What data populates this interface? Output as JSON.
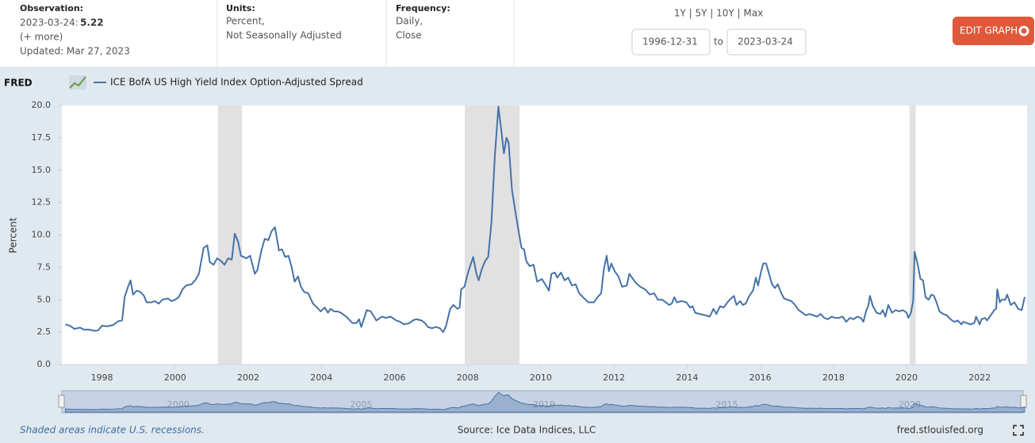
{
  "header": {
    "observation_label": "Observation:",
    "observation_date": "2023-03-24:",
    "observation_value": "5.22",
    "more": "(+ more)",
    "updated": "Updated: Mar 27, 2023",
    "units_label": "Units:",
    "units_1": "Percent,",
    "units_2": "Not Seasonally Adjusted",
    "frequency_label": "Frequency:",
    "frequency_1": "Daily,",
    "frequency_2": "Close",
    "range_options": "1Y | 5Y | 10Y | Max",
    "start_date": "1996-12-31",
    "to": "to",
    "end_date": "2023-03-24",
    "edit_button": "EDIT GRAPH",
    "logo": "FRED"
  },
  "chart_data": {
    "type": "line",
    "ylabel": "Percent",
    "note": "Shaded areas indicate U.S. recessions.",
    "source": "Source: Ice Data Indices, LLC",
    "site": "fred.stlouisfed.org",
    "xlim": [
      1996.99,
      2023.23
    ],
    "ylim": [
      0,
      20
    ],
    "xticks": [
      1998,
      2000,
      2002,
      2004,
      2006,
      2008,
      2010,
      2012,
      2014,
      2016,
      2018,
      2020,
      2022
    ],
    "navigator_ticks": [
      2000,
      2005,
      2010,
      2015,
      2020
    ],
    "yticks": [
      {
        "value": 0,
        "label": "0.0"
      },
      2.5,
      {
        "value": 5,
        "label": "5.0"
      },
      7.5,
      {
        "value": 10,
        "label": "10.0"
      },
      12.5,
      {
        "value": 15,
        "label": "15.0"
      },
      17.5,
      {
        "value": 20,
        "label": "20.0"
      }
    ],
    "grid": false,
    "recessions": [
      [
        2001.17,
        2001.83
      ],
      [
        2007.92,
        2009.42
      ],
      [
        2020.08,
        2020.25
      ]
    ],
    "recession_color": "#e1e1e1",
    "x": [
      1997.0,
      1997.12,
      1997.25,
      1997.4,
      1997.5,
      1997.65,
      1997.8,
      1997.9,
      1998.0,
      1998.15,
      1998.3,
      1998.45,
      1998.55,
      1998.62,
      1998.7,
      1998.78,
      1998.85,
      1998.95,
      1999.05,
      1999.15,
      1999.22,
      1999.35,
      1999.45,
      1999.55,
      1999.65,
      1999.8,
      1999.9,
      2000.0,
      2000.1,
      2000.2,
      2000.3,
      2000.45,
      2000.55,
      2000.65,
      2000.78,
      2000.88,
      2000.95,
      2001.05,
      2001.15,
      2001.25,
      2001.35,
      2001.45,
      2001.55,
      2001.63,
      2001.72,
      2001.8,
      2001.95,
      2002.05,
      2002.18,
      2002.25,
      2002.36,
      2002.45,
      2002.55,
      2002.64,
      2002.73,
      2002.84,
      2002.92,
      2003.01,
      2003.1,
      2003.18,
      2003.27,
      2003.36,
      2003.44,
      2003.53,
      2003.64,
      2003.77,
      2003.88,
      2003.98,
      2004.09,
      2004.18,
      2004.25,
      2004.35,
      2004.44,
      2004.53,
      2004.68,
      2004.85,
      2004.96,
      2005.03,
      2005.09,
      2005.16,
      2005.24,
      2005.35,
      2005.44,
      2005.5,
      2005.66,
      2005.76,
      2005.89,
      2006.05,
      2006.15,
      2006.26,
      2006.41,
      2006.5,
      2006.59,
      2006.74,
      2006.83,
      2006.91,
      2007.02,
      2007.13,
      2007.24,
      2007.33,
      2007.41,
      2007.52,
      2007.61,
      2007.72,
      2007.78,
      2007.82,
      2007.91,
      2008.02,
      2008.15,
      2008.24,
      2008.3,
      2008.39,
      2008.48,
      2008.56,
      2008.65,
      2008.74,
      2008.84,
      2008.93,
      2008.99,
      2009.06,
      2009.12,
      2009.21,
      2009.32,
      2009.41,
      2009.47,
      2009.54,
      2009.6,
      2009.69,
      2009.8,
      2009.9,
      2010.03,
      2010.16,
      2010.22,
      2010.29,
      2010.38,
      2010.45,
      2010.55,
      2010.65,
      2010.75,
      2010.85,
      2010.95,
      2011.05,
      2011.15,
      2011.3,
      2011.45,
      2011.55,
      2011.65,
      2011.72,
      2011.8,
      2011.86,
      2011.93,
      2012.02,
      2012.12,
      2012.22,
      2012.35,
      2012.42,
      2012.52,
      2012.6,
      2012.72,
      2012.85,
      2012.98,
      2013.1,
      2013.2,
      2013.32,
      2013.42,
      2013.5,
      2013.58,
      2013.65,
      2013.72,
      2013.85,
      2013.98,
      2014.08,
      2014.15,
      2014.22,
      2014.35,
      2014.5,
      2014.62,
      2014.72,
      2014.8,
      2014.9,
      2015.0,
      2015.1,
      2015.2,
      2015.28,
      2015.35,
      2015.45,
      2015.52,
      2015.6,
      2015.7,
      2015.8,
      2015.88,
      2015.94,
      2016.0,
      2016.08,
      2016.16,
      2016.24,
      2016.32,
      2016.4,
      2016.48,
      2016.56,
      2016.65,
      2016.75,
      2016.85,
      2016.95,
      2017.05,
      2017.15,
      2017.25,
      2017.35,
      2017.45,
      2017.55,
      2017.65,
      2017.75,
      2017.85,
      2017.95,
      2018.05,
      2018.15,
      2018.25,
      2018.35,
      2018.45,
      2018.55,
      2018.65,
      2018.75,
      2018.82,
      2018.9,
      2018.95,
      2019.0,
      2019.08,
      2019.18,
      2019.28,
      2019.35,
      2019.42,
      2019.5,
      2019.6,
      2019.7,
      2019.8,
      2019.9,
      2020.0,
      2020.05,
      2020.12,
      2020.18,
      2020.22,
      2020.3,
      2020.38,
      2020.45,
      2020.52,
      2020.6,
      2020.68,
      2020.75,
      2020.82,
      2020.9,
      2021.0,
      2021.1,
      2021.2,
      2021.3,
      2021.4,
      2021.5,
      2021.55,
      2021.65,
      2021.75,
      2021.85,
      2021.9,
      2022.0,
      2022.05,
      2022.15,
      2022.2,
      2022.3,
      2022.4,
      2022.45,
      2022.48,
      2022.55,
      2022.6,
      2022.7,
      2022.75,
      2022.85,
      2022.9,
      2022.95,
      2023.05,
      2023.15,
      2023.23
    ],
    "series": [
      {
        "name": "ICE BofA US High Yield Index Option-Adjusted Spread",
        "color": "#4572a7",
        "values": [
          3.1,
          3.0,
          2.75,
          2.85,
          2.7,
          2.7,
          2.6,
          2.65,
          3.0,
          2.95,
          3.05,
          3.35,
          3.4,
          5.2,
          5.9,
          6.5,
          5.4,
          5.7,
          5.6,
          5.3,
          4.8,
          4.8,
          4.9,
          4.7,
          5.0,
          5.1,
          4.9,
          5.0,
          5.2,
          5.8,
          6.1,
          6.2,
          6.5,
          7.0,
          9.0,
          9.2,
          7.9,
          7.7,
          8.2,
          8.0,
          7.7,
          8.2,
          8.1,
          10.1,
          9.5,
          8.4,
          8.2,
          8.4,
          7.0,
          7.3,
          8.8,
          9.7,
          9.6,
          10.3,
          10.6,
          8.8,
          8.9,
          8.3,
          8.4,
          7.6,
          6.4,
          6.8,
          6.0,
          5.6,
          5.5,
          4.7,
          4.4,
          4.1,
          4.4,
          4.0,
          4.3,
          4.1,
          4.1,
          4.0,
          3.7,
          3.2,
          3.2,
          3.5,
          2.9,
          3.5,
          4.2,
          4.1,
          3.7,
          3.4,
          3.7,
          3.6,
          3.7,
          3.4,
          3.3,
          3.1,
          3.2,
          3.4,
          3.5,
          3.4,
          3.2,
          2.9,
          2.8,
          2.9,
          2.8,
          2.5,
          3.0,
          4.3,
          4.6,
          4.3,
          4.4,
          5.8,
          6.0,
          7.2,
          8.3,
          7.0,
          6.5,
          7.4,
          8.0,
          8.3,
          11.0,
          16.0,
          19.9,
          17.8,
          16.3,
          17.5,
          17.1,
          13.5,
          11.5,
          10.0,
          9.0,
          8.9,
          8.0,
          7.6,
          7.7,
          6.4,
          6.6,
          6.0,
          5.7,
          7.0,
          7.1,
          6.7,
          7.1,
          6.5,
          6.7,
          6.1,
          6.2,
          5.5,
          5.2,
          4.8,
          4.8,
          5.2,
          5.5,
          7.3,
          8.4,
          7.2,
          7.8,
          7.2,
          6.8,
          6.0,
          6.1,
          7.0,
          6.6,
          6.3,
          6.0,
          5.8,
          5.4,
          5.5,
          5.0,
          5.0,
          4.8,
          4.6,
          4.7,
          5.2,
          4.8,
          4.9,
          4.8,
          4.4,
          4.5,
          4.0,
          3.9,
          3.8,
          3.7,
          4.3,
          3.9,
          4.5,
          4.4,
          4.8,
          5.1,
          5.3,
          4.6,
          4.9,
          4.6,
          4.7,
          5.3,
          5.7,
          6.7,
          6.1,
          6.9,
          7.8,
          7.8,
          7.0,
          6.2,
          5.9,
          6.2,
          5.6,
          5.1,
          5.0,
          4.9,
          4.6,
          4.2,
          4.0,
          3.8,
          3.9,
          3.8,
          3.7,
          3.9,
          3.6,
          3.5,
          3.7,
          3.6,
          3.6,
          3.7,
          3.3,
          3.6,
          3.5,
          3.7,
          3.6,
          3.3,
          4.2,
          4.5,
          5.3,
          4.5,
          4.0,
          3.9,
          4.2,
          3.7,
          4.6,
          4.0,
          4.2,
          4.1,
          4.2,
          4.0,
          3.6,
          4.0,
          4.9,
          8.7,
          7.8,
          6.6,
          6.5,
          5.2,
          5.0,
          5.4,
          5.3,
          4.8,
          4.1,
          3.9,
          3.8,
          3.5,
          3.3,
          3.4,
          3.1,
          3.3,
          3.2,
          3.1,
          3.2,
          3.7,
          3.1,
          3.5,
          3.6,
          3.4,
          3.8,
          4.2,
          4.3,
          5.8,
          4.8,
          5.0,
          5.0,
          5.4,
          4.6,
          4.7,
          4.8,
          4.3,
          4.2,
          5.22
        ]
      }
    ]
  }
}
